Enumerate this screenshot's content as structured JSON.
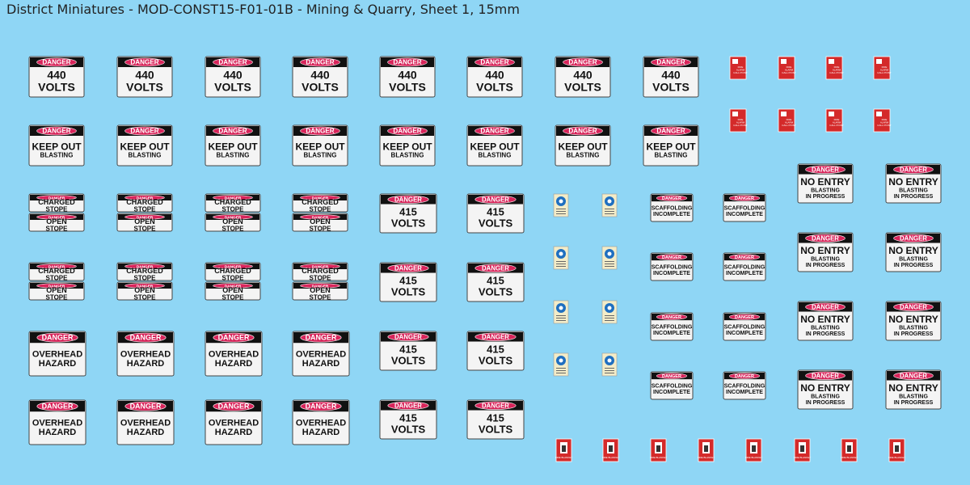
{
  "header": {
    "title": "District Miniatures - MOD-CONST15-F01-01B - Mining & Quarry, Sheet 1, 15mm"
  },
  "signs": {
    "volts440": {
      "header": "DANGER",
      "lines": [
        "440",
        "VOLTS"
      ]
    },
    "keepout": {
      "header": "DANGER",
      "lines": [
        "KEEP OUT",
        "BLASTING"
      ]
    },
    "charged": {
      "header": "DANGER",
      "lines": [
        "CHARGED",
        "STOPE"
      ]
    },
    "open": {
      "header": "DANGER",
      "lines": [
        "OPEN",
        "STOPE"
      ]
    },
    "overhead": {
      "header": "DANGER",
      "lines": [
        "OVERHEAD",
        "HAZARD"
      ]
    },
    "volts415": {
      "header": "DANGER",
      "lines": [
        "415",
        "VOLTS"
      ]
    },
    "scaffold": {
      "header": "DANGER",
      "lines": [
        "SCAFFOLDING",
        "INCOMPLETE"
      ]
    },
    "noentry": {
      "header": "DANGER",
      "lines": [
        "NO ENTRY",
        "BLASTING",
        "IN PROGRESS"
      ]
    },
    "firealarm": {
      "lines": [
        "FIRE",
        "ALARM",
        "CALL POINT"
      ]
    },
    "fireblanket": {
      "lines": [
        "FIRE BLANKET"
      ]
    }
  }
}
